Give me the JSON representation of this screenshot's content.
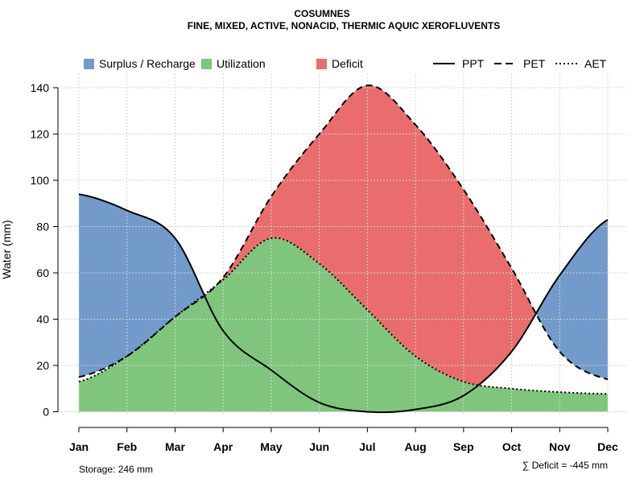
{
  "chart_data": {
    "type": "area",
    "title": "COSUMNES",
    "subtitle": "FINE, MIXED, ACTIVE, NONACID, THERMIC AQUIC XEROFLUVENTS",
    "xlabel": "",
    "ylabel": "Water (mm)",
    "ylim": [
      0,
      146
    ],
    "yticks": [
      "0",
      "20",
      "40",
      "60",
      "80",
      "100",
      "120",
      "140"
    ],
    "ytick_values": [
      0,
      20,
      40,
      60,
      80,
      100,
      120,
      140
    ],
    "grid": true,
    "categories": [
      "Jan",
      "Feb",
      "Mar",
      "Apr",
      "May",
      "Jun",
      "Jul",
      "Aug",
      "Sep",
      "Oct",
      "Nov",
      "Dec"
    ],
    "series": [
      {
        "name": "PPT",
        "style": "solid",
        "values": [
          94,
          87,
          75,
          35,
          18,
          4,
          0,
          1,
          7,
          26,
          59,
          83
        ]
      },
      {
        "name": "PET",
        "style": "dashed",
        "values": [
          15,
          24,
          41,
          58,
          93,
          120,
          141,
          124,
          96,
          62,
          26,
          14
        ]
      },
      {
        "name": "AET",
        "style": "dotted",
        "values": [
          13,
          24,
          41,
          57,
          75,
          64,
          44,
          24,
          13,
          10,
          8.5,
          7.7
        ]
      }
    ],
    "areas": [
      {
        "name": "Surplus / Recharge",
        "color": "#729acb"
      },
      {
        "name": "Utilization",
        "color": "#7fc67c"
      },
      {
        "name": "Deficit",
        "color": "#ea6d6e"
      }
    ],
    "legend_position": "top",
    "notes": {
      "storage": "Storage: 246 mm",
      "deficit": "∑ Deficit = -445 mm"
    }
  }
}
